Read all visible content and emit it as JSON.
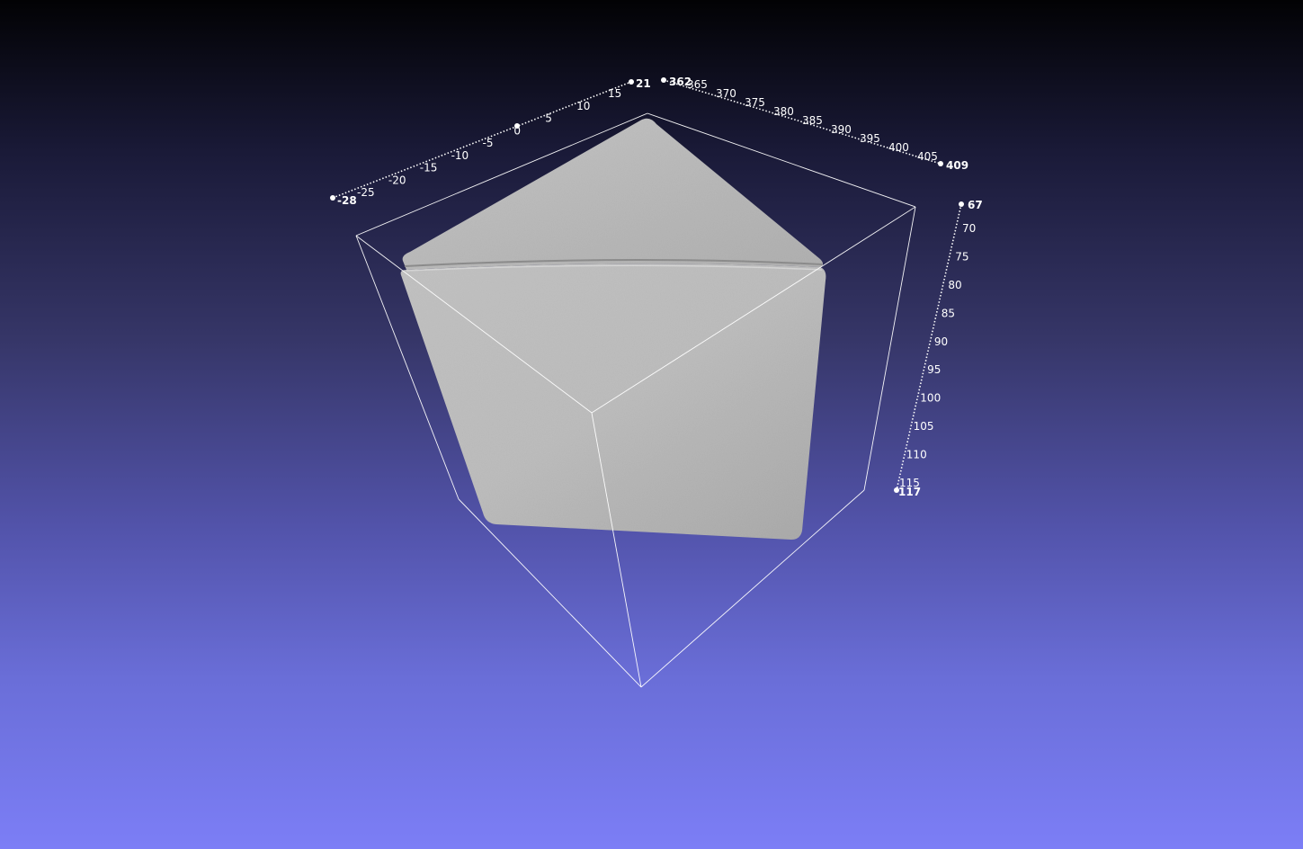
{
  "colors": {
    "background_top": "#020204",
    "background_bottom": "#7c7ef6",
    "mesh": "#b8b8b8",
    "bbox": "#ffffff"
  },
  "axes": {
    "x": {
      "min_label": "-28",
      "max_label": "21",
      "ticks": [
        "-25",
        "-20",
        "-15",
        "-10",
        "-5",
        "0",
        "5",
        "10",
        "15"
      ]
    },
    "y": {
      "min_label": "362",
      "max_label": "409",
      "ticks": [
        "365",
        "370",
        "375",
        "380",
        "385",
        "390",
        "395",
        "400",
        "405"
      ]
    },
    "z": {
      "min_label": "67",
      "max_label": "117",
      "ticks": [
        "70",
        "75",
        "80",
        "85",
        "90",
        "95",
        "100",
        "105",
        "110",
        "115"
      ]
    }
  }
}
